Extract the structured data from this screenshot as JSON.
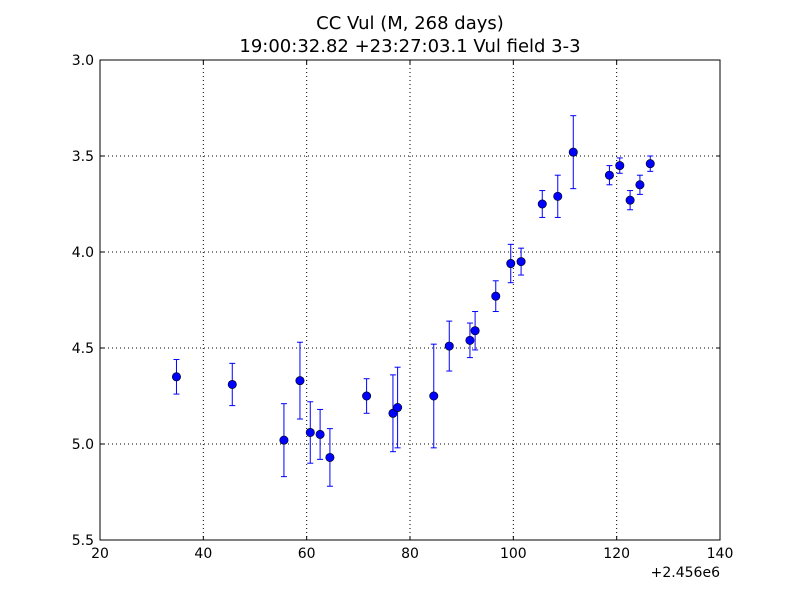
{
  "chart_data": {
    "type": "scatter",
    "title": "CC Vul (M, 268 days)",
    "subtitle": "19:00:32.82 +23:27:03.1 Vul field 3-3",
    "xlabel": "",
    "ylabel": "",
    "x_offset_label": "+2.456e6",
    "xlim": [
      20,
      140
    ],
    "ylim": [
      5.5,
      3.0
    ],
    "y_inverted": true,
    "x_ticks": [
      20,
      40,
      60,
      80,
      100,
      120,
      140
    ],
    "x_tick_labels": [
      "20",
      "40",
      "60",
      "80",
      "100",
      "120",
      "140"
    ],
    "y_ticks": [
      3.0,
      3.5,
      4.0,
      4.5,
      5.0,
      5.5
    ],
    "y_tick_labels": [
      "3.0",
      "3.5",
      "4.0",
      "4.5",
      "5.0",
      "5.5"
    ],
    "grid": true,
    "grid_style": "dotted",
    "marker_color": "#0000ff",
    "points": [
      {
        "x": 34.8,
        "y": 4.65,
        "err": 0.09
      },
      {
        "x": 45.6,
        "y": 4.69,
        "err": 0.11
      },
      {
        "x": 55.6,
        "y": 4.98,
        "err": 0.19
      },
      {
        "x": 58.7,
        "y": 4.67,
        "err": 0.2
      },
      {
        "x": 60.7,
        "y": 4.94,
        "err": 0.16
      },
      {
        "x": 62.6,
        "y": 4.95,
        "err": 0.13
      },
      {
        "x": 64.5,
        "y": 5.07,
        "err": 0.15
      },
      {
        "x": 71.6,
        "y": 4.75,
        "err": 0.09
      },
      {
        "x": 76.7,
        "y": 4.84,
        "err": 0.2
      },
      {
        "x": 77.6,
        "y": 4.81,
        "err": 0.21
      },
      {
        "x": 84.6,
        "y": 4.75,
        "err": 0.27
      },
      {
        "x": 87.6,
        "y": 4.49,
        "err": 0.13
      },
      {
        "x": 91.6,
        "y": 4.46,
        "err": 0.09
      },
      {
        "x": 92.6,
        "y": 4.41,
        "err": 0.1
      },
      {
        "x": 96.6,
        "y": 4.23,
        "err": 0.08
      },
      {
        "x": 99.5,
        "y": 4.06,
        "err": 0.1
      },
      {
        "x": 101.5,
        "y": 4.05,
        "err": 0.07
      },
      {
        "x": 105.6,
        "y": 3.75,
        "err": 0.07
      },
      {
        "x": 108.6,
        "y": 3.71,
        "err": 0.11
      },
      {
        "x": 111.6,
        "y": 3.48,
        "err": 0.19
      },
      {
        "x": 118.6,
        "y": 3.6,
        "err": 0.05
      },
      {
        "x": 120.6,
        "y": 3.55,
        "err": 0.04
      },
      {
        "x": 122.6,
        "y": 3.73,
        "err": 0.05
      },
      {
        "x": 124.5,
        "y": 3.65,
        "err": 0.05
      },
      {
        "x": 126.5,
        "y": 3.54,
        "err": 0.04
      }
    ]
  }
}
